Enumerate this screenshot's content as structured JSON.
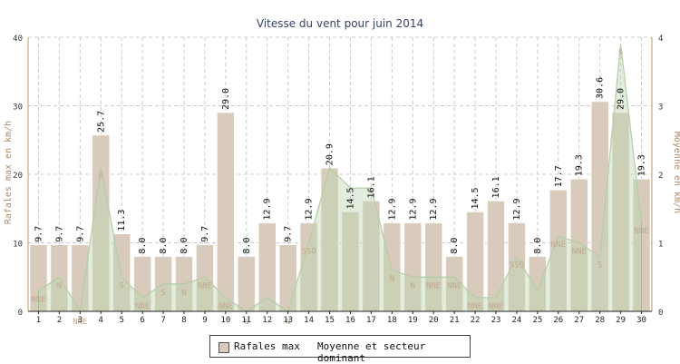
{
  "chart_data": {
    "type": "bar",
    "title": "Vitesse du vent pour juin 2014",
    "ylabel_left": "Rafales max en km/h",
    "ylabel_right": "Moyenne en km/h",
    "ylim_left": [
      0,
      40
    ],
    "ylim_right": [
      0,
      4
    ],
    "yticks_left": [
      "0",
      "10",
      "20",
      "30",
      "40"
    ],
    "yticks_right": [
      "0",
      "1",
      "2",
      "3",
      "4"
    ],
    "grid": true,
    "legend_position": "bottom",
    "categories": [
      "1",
      "2",
      "3",
      "4",
      "5",
      "6",
      "7",
      "8",
      "9",
      "10",
      "11",
      "12",
      "13",
      "14",
      "15",
      "16",
      "17",
      "18",
      "19",
      "20",
      "21",
      "22",
      "23",
      "24",
      "25",
      "26",
      "27",
      "28",
      "29",
      "30"
    ],
    "series": [
      {
        "name": "Rafales max",
        "axis": "left",
        "values": [
          9.7,
          9.7,
          9.7,
          25.7,
          11.3,
          8.0,
          8.0,
          8.0,
          9.7,
          29.0,
          8.0,
          12.9,
          9.7,
          12.9,
          20.9,
          14.5,
          16.1,
          12.9,
          12.9,
          12.9,
          8.0,
          14.5,
          16.1,
          12.9,
          8.0,
          17.7,
          19.3,
          30.6,
          29.0,
          19.3
        ],
        "labels": [
          "9.7",
          "9.7",
          "9.7",
          "25.7",
          "11.3",
          "8.0",
          "8.0",
          "8.0",
          "9.7",
          "29.0",
          "8.0",
          "12.9",
          "9.7",
          "12.9",
          "20.9",
          "14.5",
          "16.1",
          "12.9",
          "12.9",
          "12.9",
          "8.0",
          "14.5",
          "16.1",
          "12.9",
          "8.0",
          "17.7",
          "19.3",
          "30.6",
          "29.0",
          "19.3"
        ],
        "color": "#d8cbbb"
      },
      {
        "name": "Moyenne et secteur dominant",
        "axis": "right",
        "values": [
          0.3,
          0.5,
          0.0,
          2.1,
          0.5,
          0.2,
          0.4,
          0.4,
          0.5,
          0.2,
          0.0,
          0.2,
          0.0,
          1.0,
          2.1,
          1.8,
          1.8,
          0.6,
          0.5,
          0.5,
          0.5,
          0.2,
          0.2,
          0.8,
          0.3,
          1.1,
          1.0,
          0.8,
          3.9,
          1.3
        ],
        "sectors": [
          "NNE",
          "N",
          "NNE",
          "S",
          "S",
          "NNE",
          "S",
          "N",
          "NNE",
          "NNE",
          "N",
          "",
          "N",
          "SSO",
          "",
          "",
          "",
          "N",
          "N",
          "NNE",
          "NNE",
          "NNE",
          "NNE",
          "SSO",
          "",
          "NNE",
          "NNE",
          "S",
          "S",
          "NNE"
        ],
        "color": "#bfd6b4"
      }
    ]
  }
}
